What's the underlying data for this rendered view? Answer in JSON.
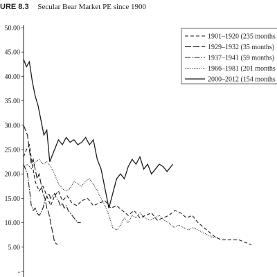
{
  "figure": {
    "number": "URE 8.3",
    "title": "Secular Bear Market PE since 1900"
  },
  "chart_data": {
    "type": "line",
    "title": "Secular Bear Market PE since 1900",
    "xlabel": "",
    "ylabel": "",
    "ylim": [
      0,
      50
    ],
    "yticks": [
      "50.00",
      "45.00",
      "40.00",
      "35.00",
      "30.00",
      "25.00",
      "20.00",
      "15.00",
      "10.00",
      "5.00",
      "-"
    ],
    "grid": false,
    "legend_position": "top-right",
    "x_unit": "months into secular bear",
    "series": [
      {
        "name": "1901–1920 (235 months",
        "style": "dashed",
        "x": [
          0,
          3,
          6,
          9,
          12,
          16,
          20,
          24,
          28,
          32,
          36,
          40,
          45,
          50,
          55,
          60,
          66,
          72,
          78,
          84,
          90,
          96,
          102,
          108,
          114,
          120,
          126,
          132,
          138,
          144,
          150,
          156,
          162,
          168,
          174,
          180,
          186,
          192,
          198,
          204,
          210,
          216,
          222,
          228,
          235
        ],
        "values": [
          23.5,
          25.0,
          26.0,
          22.0,
          18.5,
          16.5,
          17.5,
          15.5,
          13.5,
          15.5,
          16.5,
          14.5,
          15.5,
          14.0,
          13.5,
          14.5,
          15.0,
          13.5,
          14.0,
          14.5,
          13.0,
          13.5,
          12.5,
          11.5,
          12.5,
          11.0,
          11.5,
          12.0,
          10.5,
          11.0,
          11.5,
          12.5,
          12.0,
          11.0,
          11.5,
          10.0,
          9.0,
          8.0,
          7.0,
          6.5,
          6.5,
          6.5,
          6.5,
          6.0,
          5.5
        ]
      },
      {
        "name": "1929–1932 (35 months)",
        "style": "long-dash",
        "x": [
          0,
          2,
          4,
          6,
          8,
          10,
          12,
          14,
          16,
          18,
          20,
          22,
          24,
          26,
          28,
          30,
          32,
          35
        ],
        "values": [
          30.0,
          29.0,
          28.0,
          25.0,
          22.0,
          23.0,
          21.0,
          19.0,
          20.0,
          18.0,
          16.0,
          15.0,
          13.0,
          12.0,
          10.0,
          8.0,
          6.0,
          5.5
        ]
      },
      {
        "name": "1937–1941 (59 months)",
        "style": "dash-dot",
        "x": [
          0,
          2,
          4,
          6,
          8,
          10,
          12,
          14,
          16,
          18,
          20,
          22,
          24,
          26,
          28,
          30,
          32,
          34,
          36,
          38,
          40,
          42,
          44,
          46,
          48,
          50,
          52,
          54,
          56,
          59
        ],
        "values": [
          22.0,
          21.0,
          20.0,
          17.0,
          13.5,
          12.5,
          13.0,
          12.0,
          11.5,
          12.0,
          13.0,
          14.5,
          15.5,
          16.0,
          15.0,
          15.5,
          16.0,
          15.0,
          14.5,
          13.5,
          14.0,
          13.0,
          13.5,
          12.5,
          12.0,
          11.5,
          11.0,
          10.5,
          10.0,
          10.0
        ]
      },
      {
        "name": "1966–1981 (201 months",
        "style": "dotted",
        "x": [
          0,
          4,
          8,
          12,
          16,
          20,
          24,
          28,
          32,
          36,
          40,
          44,
          48,
          52,
          56,
          60,
          64,
          68,
          72,
          76,
          80,
          84,
          88,
          92,
          96,
          100,
          104,
          108,
          112,
          116,
          120,
          125,
          130,
          135,
          140,
          145,
          150,
          155,
          160,
          165,
          170,
          175,
          180,
          185,
          190,
          195,
          201
        ],
        "values": [
          21.0,
          22.0,
          21.0,
          22.5,
          23.0,
          22.0,
          22.5,
          21.5,
          20.0,
          18.0,
          17.0,
          16.5,
          17.0,
          18.5,
          18.0,
          17.5,
          18.5,
          19.0,
          18.0,
          16.5,
          15.0,
          13.5,
          11.5,
          9.0,
          8.5,
          9.5,
          11.0,
          10.0,
          11.5,
          11.0,
          12.0,
          11.0,
          10.5,
          11.0,
          11.5,
          10.5,
          10.0,
          9.0,
          9.5,
          9.0,
          8.5,
          9.0,
          8.5,
          8.0,
          7.5,
          7.0,
          7.0
        ]
      },
      {
        "name": "2000–2012 (154 months",
        "style": "solid",
        "x": [
          0,
          3,
          6,
          9,
          12,
          15,
          18,
          21,
          24,
          27,
          30,
          33,
          36,
          40,
          44,
          48,
          52,
          56,
          60,
          64,
          68,
          72,
          76,
          80,
          84,
          88,
          92,
          96,
          100,
          104,
          108,
          112,
          116,
          120,
          124,
          128,
          132,
          136,
          140,
          144,
          148,
          154
        ],
        "values": [
          43.5,
          42.0,
          43.0,
          39.0,
          36.0,
          34.0,
          31.0,
          28.0,
          29.0,
          22.5,
          24.0,
          25.5,
          27.0,
          26.0,
          27.5,
          26.5,
          27.0,
          26.0,
          26.5,
          27.5,
          26.0,
          27.0,
          23.0,
          21.0,
          17.0,
          13.0,
          16.0,
          19.0,
          20.0,
          19.0,
          21.5,
          23.0,
          22.0,
          23.5,
          21.0,
          22.0,
          20.0,
          21.0,
          22.0,
          21.5,
          20.5,
          22.0
        ]
      }
    ]
  }
}
